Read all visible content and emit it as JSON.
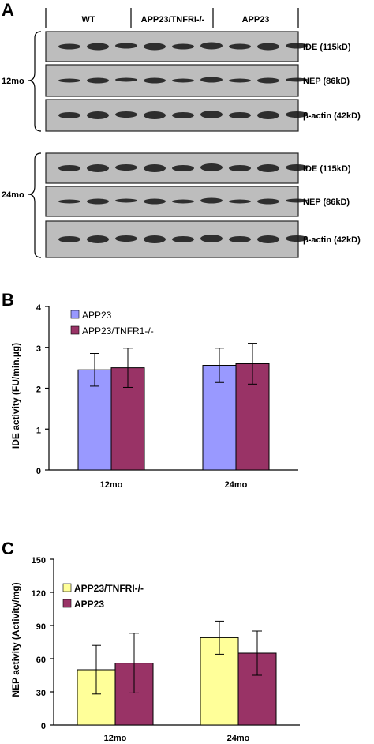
{
  "panels": {
    "a": "A",
    "b": "B",
    "c": "C"
  },
  "blot": {
    "groups": [
      "WT",
      "APP23/TNFRI-/-",
      "APP23"
    ],
    "age_12": "12mo",
    "age_24": "24mo",
    "markers": [
      "IDE (115kD)",
      "NEP (86kD)",
      "β-actin (42kD)"
    ]
  },
  "chart_data": [
    {
      "type": "bar",
      "categories": [
        "12mo",
        "24mo"
      ],
      "series": [
        {
          "name": "APP23",
          "values": [
            2.45,
            2.56
          ],
          "errors": [
            0.4,
            0.42
          ],
          "color": "#9999ff"
        },
        {
          "name": "APP23/TNFR1-/-",
          "values": [
            2.5,
            2.6
          ],
          "errors": [
            0.48,
            0.5
          ],
          "color": "#993366"
        }
      ],
      "ylabel": "IDE activity (FU/min.µg)",
      "ylim": [
        0,
        4
      ],
      "yticks": [
        "0",
        "1",
        "2",
        "3",
        "4"
      ],
      "legend": "top-left"
    },
    {
      "type": "bar",
      "categories": [
        "12mo",
        "24mo"
      ],
      "series": [
        {
          "name": "APP23/TNFRI-/-",
          "values": [
            50,
            79
          ],
          "errors": [
            22,
            15
          ],
          "color": "#ffff99"
        },
        {
          "name": "APP23",
          "values": [
            56,
            65
          ],
          "errors": [
            27,
            20
          ],
          "color": "#993366"
        }
      ],
      "ylabel": "NEP activity (Activity/mg)",
      "ylim": [
        0,
        150
      ],
      "yticks": [
        "0",
        "30",
        "60",
        "90",
        "120",
        "150"
      ],
      "legend": "top-left"
    }
  ]
}
